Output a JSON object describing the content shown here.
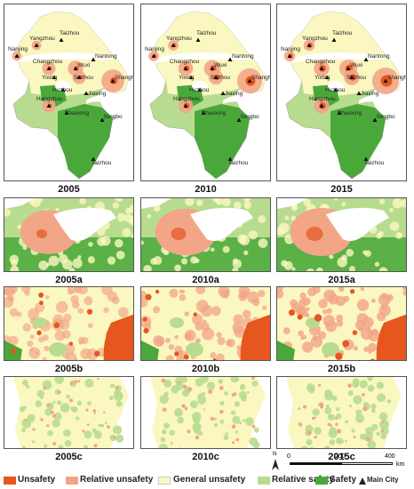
{
  "colors": {
    "unsafety": "#e6561f",
    "relative_unsafety": "#f2a587",
    "general_unsafety": "#fbf7c0",
    "relative_safety": "#b8dc8f",
    "safety": "#4aa83a",
    "water": "#ffffff"
  },
  "top_panels": [
    {
      "year": "2005"
    },
    {
      "year": "2010"
    },
    {
      "year": "2015"
    }
  ],
  "row_a": [
    "2005a",
    "2010a",
    "2015a"
  ],
  "row_b": [
    "2005b",
    "2010b",
    "2015b"
  ],
  "row_c": [
    "2005c",
    "2010c",
    "2015c"
  ],
  "cities": [
    "Yangzhou",
    "Taizhou",
    "Nanjing",
    "Nantong",
    "Changzhou",
    "Wuxi",
    "Yixing",
    "Suzhou",
    "Shanghai",
    "Huzhou",
    "Jiaxing",
    "Hangzhou",
    "Shaoxing",
    "Ningbo",
    "Taizhou"
  ],
  "legend": {
    "unsafety": "Unsafety",
    "relative_unsafety": "Relative unsafety",
    "general_unsafety": "General unsafety",
    "relative_safety": "Relative safety",
    "safety": "Safety",
    "main_city": "Main City"
  },
  "scale": {
    "start": "0",
    "mid": "200",
    "end": "400",
    "unit": "km"
  },
  "north": "N"
}
